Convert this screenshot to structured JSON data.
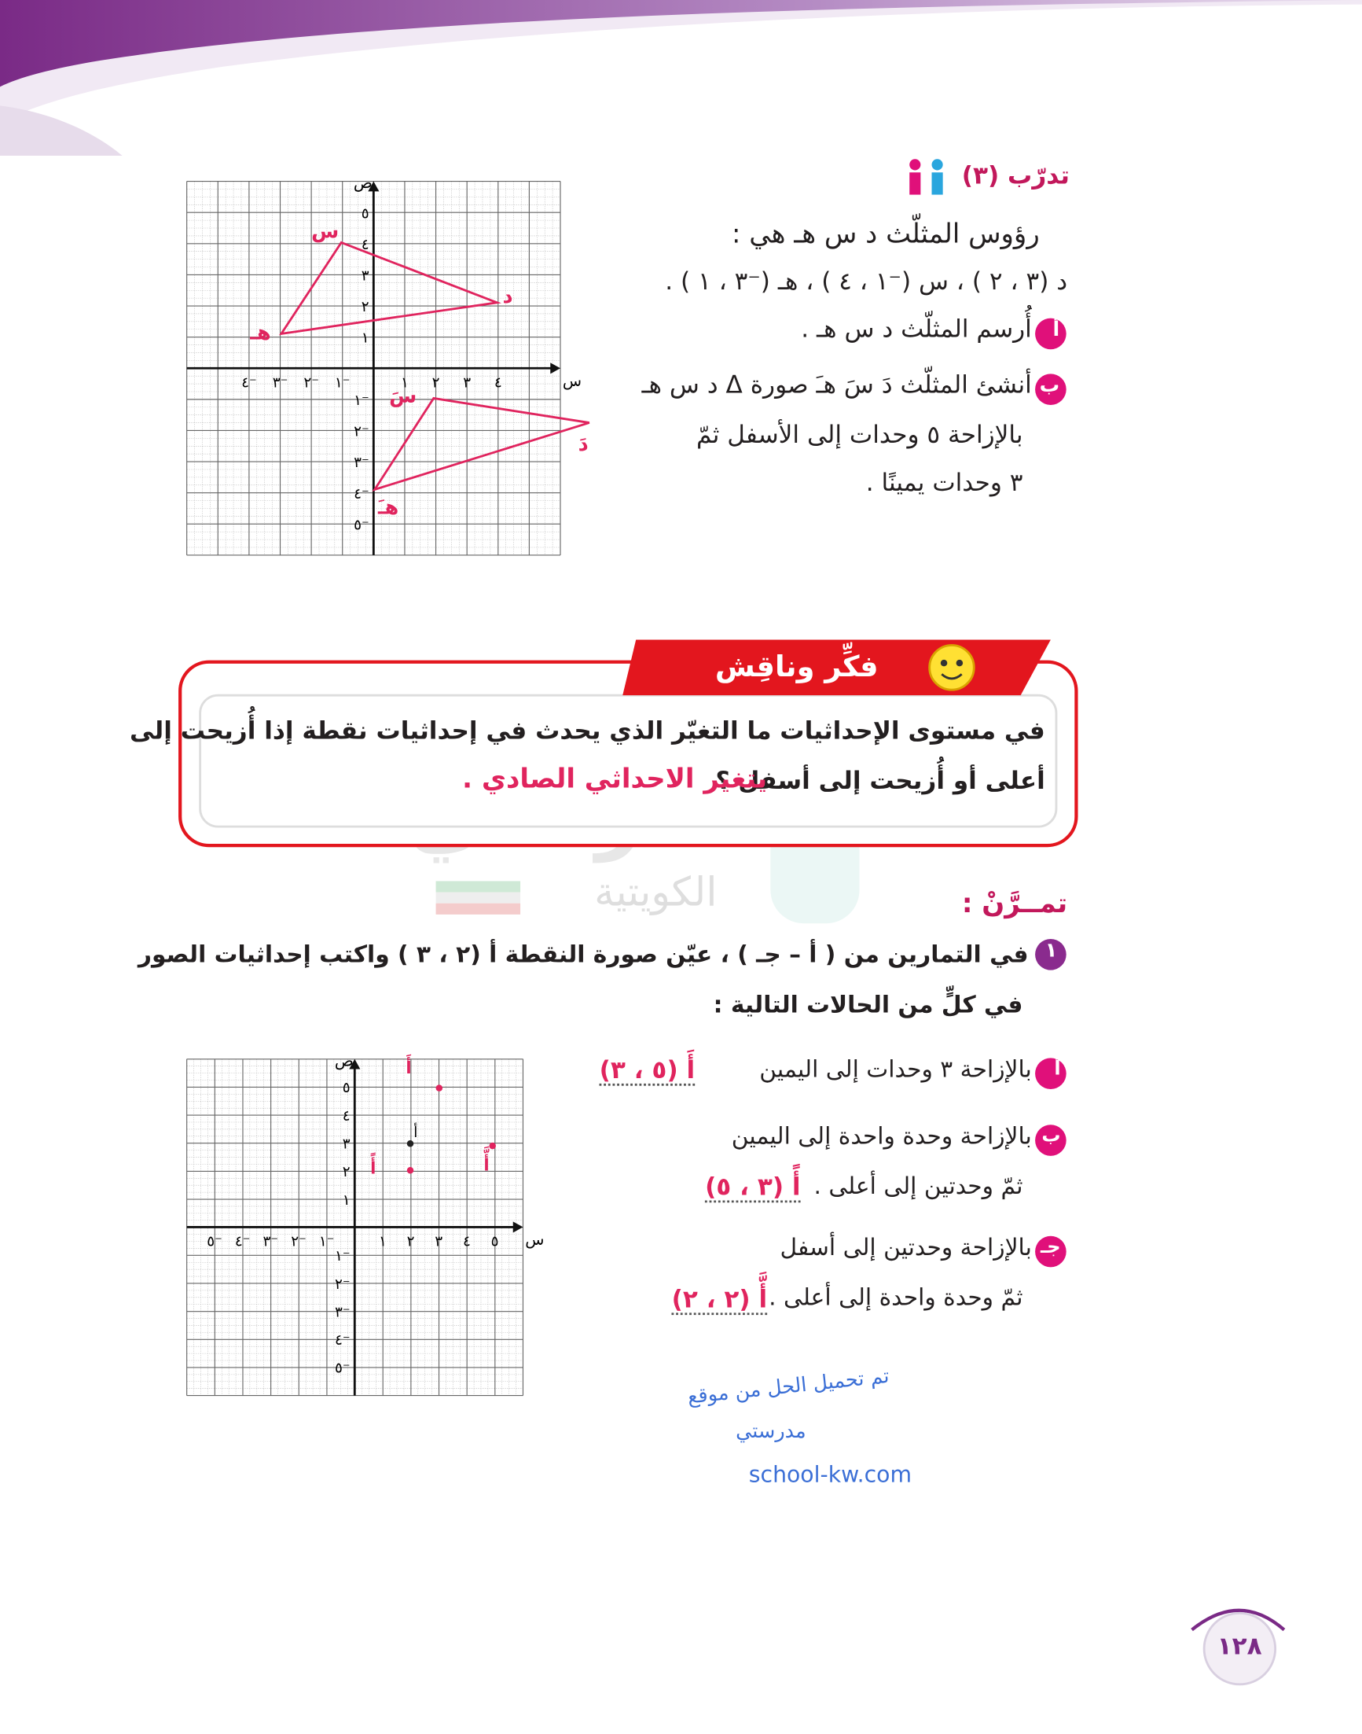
{
  "practice": {
    "title": "تدرّب (٣)",
    "intro": "رؤوس المثلّث د س هـ هي :",
    "vertices": "د (٣ ، ٢ ) ، س (⁻١ ، ٤ ) ، هـ (⁻٣ ، ١ ) .",
    "items": [
      {
        "marker": "أ",
        "lines": [
          "أُرسم المثلّث د س هـ ."
        ]
      },
      {
        "marker": "ب",
        "lines": [
          "أنشئ المثلّث دَ سَ هـَ صورة Δ د س هـ",
          "بالإزاحة ٥ وحدات إلى الأسفل ثمّ",
          "٣ وحدات يمينًا ."
        ]
      }
    ],
    "graph": {
      "x_axis": "س",
      "y_axis": "ص",
      "x_labels": [
        "٤⁻",
        "٣⁻",
        "٢⁻",
        "١⁻",
        "١",
        "٢",
        "٣",
        "٤"
      ],
      "y_labels": [
        "٥",
        "٤",
        "٣",
        "٢",
        "١",
        "١⁻",
        "٢⁻",
        "٣⁻",
        "٤⁻",
        "٥⁻"
      ],
      "handwritten": [
        "س",
        "د",
        "هـ",
        "سَ",
        "دَ",
        "هـَ"
      ]
    }
  },
  "discuss": {
    "title": "فكِّر وناقِش",
    "lines": [
      "في مستوى الإحداثيات ما التغيّر الذي يحدث في إحداثيات نقطة إذا أُزيحت إلى",
      "أعلى أو أُزيحت إلى أسفل ؟"
    ],
    "answer": "يتغير الاحداثي الصادي ."
  },
  "watermark": [
    "مدرستي",
    "الكويتية"
  ],
  "exercises": {
    "title": "تمــرَّنْ :",
    "items": [
      {
        "number": "١",
        "lines": [
          "في التمارين من ( أ – جـ ) ، عيّن صورة النقطة أ (٢ ، ٣ ) واكتب إحداثيات الصور",
          "في كلٍّ من الحالات التالية :"
        ],
        "parts": [
          {
            "marker": "أ",
            "lines": [
              "بالإزاحة ٣ وحدات إلى اليمين"
            ],
            "answer": "أَ (٥ ، ٣)"
          },
          {
            "marker": "ب",
            "lines": [
              "بالإزاحة وحدة واحدة إلى اليمين",
              "ثمّ وحدتين إلى أعلى ."
            ],
            "answer": "أً (٣ ، ٥)"
          },
          {
            "marker": "جـ",
            "lines": [
              "بالإزاحة وحدتين إلى أسفل",
              "ثمّ وحدة واحدة إلى أعلى ."
            ],
            "answer": "أَّ (٢ ، ٢)"
          }
        ]
      }
    ],
    "graph": {
      "x_axis": "س",
      "y_axis": "ص",
      "x_labels": [
        "٥⁻",
        "٤⁻",
        "٣⁻",
        "٢⁻",
        "١⁻",
        "١",
        "٢",
        "٣",
        "٤",
        "٥"
      ],
      "y_labels": [
        "٥",
        "٤",
        "٣",
        "٢",
        "١",
        "١⁻",
        "٢⁻",
        "٣⁻",
        "٤⁻",
        "٥⁻"
      ],
      "point": "أ",
      "handwritten": [
        "أَ",
        "أً",
        "أَّ"
      ]
    }
  },
  "note": [
    "تم تحميل الحل من موقع",
    "مدرستي",
    "school-kw.com"
  ],
  "page_number": "١٢٨"
}
